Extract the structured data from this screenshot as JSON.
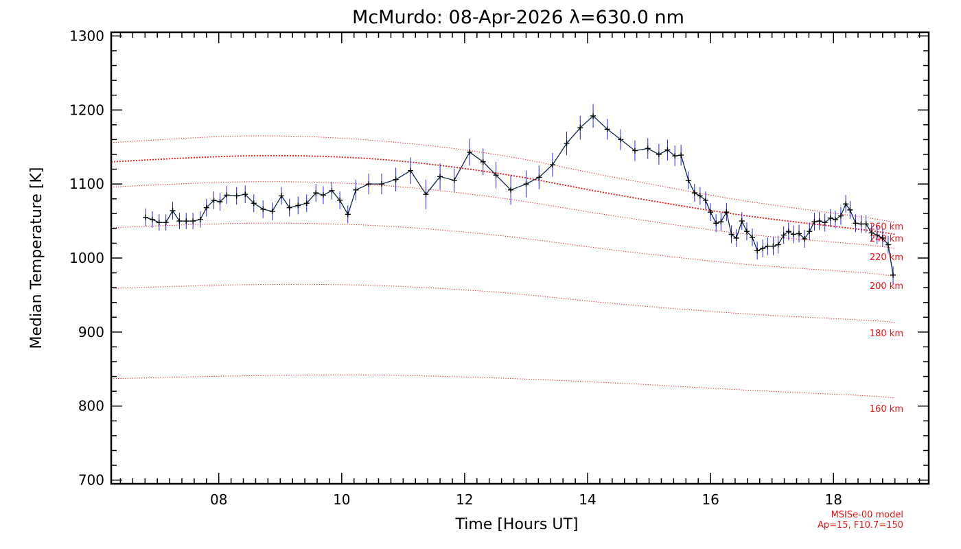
{
  "chart_data": {
    "type": "line",
    "title": "McMurdo: 08-Apr-2026 λ=630.0 nm",
    "xlabel": "Time [Hours UT]",
    "ylabel": "Median Temperature [K]",
    "xlim": [
      6.25,
      19.55
    ],
    "ylim": [
      695,
      1305
    ],
    "xticks": [
      8,
      10,
      12,
      14,
      16,
      18
    ],
    "xtick_labels": [
      "08",
      "10",
      "12",
      "14",
      "16",
      "18"
    ],
    "yticks": [
      700,
      800,
      900,
      1000,
      1100,
      1200,
      1300
    ],
    "ytick_labels": [
      "700",
      "800",
      "900",
      "1000",
      "1100",
      "1200",
      "1300"
    ],
    "colors": {
      "measured": "#000000",
      "error_bars": "#1f1fff",
      "model": "#ee1111",
      "note": "#ee1111"
    },
    "series": [
      {
        "name": "Measured median temperature",
        "x": [
          6.81,
          6.92,
          7.03,
          7.14,
          7.25,
          7.36,
          7.47,
          7.58,
          7.7,
          7.8,
          7.92,
          8.02,
          8.13,
          8.29,
          8.43,
          8.57,
          8.72,
          8.87,
          9.02,
          9.15,
          9.29,
          9.43,
          9.58,
          9.7,
          9.84,
          9.97,
          10.1,
          10.23,
          10.44,
          10.65,
          10.88,
          11.12,
          11.37,
          11.6,
          11.83,
          12.08,
          12.3,
          12.51,
          12.75,
          13.0,
          13.21,
          13.43,
          13.66,
          13.88,
          14.09,
          14.32,
          14.54,
          14.77,
          14.98,
          15.16,
          15.3,
          15.42,
          15.52,
          15.64,
          15.74,
          15.83,
          15.92,
          16.0,
          16.09,
          16.17,
          16.26,
          16.34,
          16.42,
          16.51,
          16.59,
          16.68,
          16.76,
          16.85,
          16.93,
          17.02,
          17.1,
          17.19,
          17.27,
          17.35,
          17.44,
          17.53,
          17.61,
          17.69,
          17.77,
          17.86,
          17.95,
          18.03,
          18.12,
          18.2,
          18.27,
          18.36,
          18.45,
          18.53,
          18.62,
          18.71,
          18.8,
          18.89,
          18.97
        ],
        "y": [
          1055,
          1052,
          1048,
          1048,
          1064,
          1050,
          1050,
          1050,
          1052,
          1068,
          1078,
          1076,
          1085,
          1084,
          1086,
          1074,
          1066,
          1063,
          1084,
          1068,
          1071,
          1074,
          1088,
          1085,
          1091,
          1078,
          1059,
          1092,
          1100,
          1100,
          1106,
          1118,
          1086,
          1110,
          1105,
          1143,
          1130,
          1112,
          1092,
          1100,
          1109,
          1126,
          1155,
          1176,
          1192,
          1174,
          1160,
          1145,
          1148,
          1140,
          1146,
          1138,
          1139,
          1105,
          1088,
          1084,
          1078,
          1062,
          1047,
          1049,
          1062,
          1032,
          1027,
          1050,
          1036,
          1028,
          1010,
          1013,
          1016,
          1016,
          1018,
          1031,
          1036,
          1032,
          1033,
          1026,
          1036,
          1049,
          1050,
          1048,
          1054,
          1052,
          1057,
          1073,
          1065,
          1047,
          1046,
          1046,
          1034,
          1031,
          1027,
          1018,
          977
        ],
        "error": [
          12,
          11,
          11,
          11,
          12,
          11,
          11,
          11,
          11,
          12,
          12,
          12,
          12,
          12,
          12,
          12,
          12,
          12,
          12,
          12,
          12,
          12,
          12,
          12,
          12,
          12,
          12,
          14,
          14,
          14,
          16,
          18,
          20,
          18,
          16,
          18,
          18,
          18,
          20,
          18,
          16,
          16,
          16,
          16,
          16,
          14,
          14,
          14,
          14,
          14,
          14,
          14,
          14,
          12,
          12,
          12,
          12,
          12,
          12,
          12,
          12,
          12,
          12,
          12,
          12,
          12,
          12,
          12,
          12,
          12,
          12,
          12,
          12,
          12,
          12,
          12,
          12,
          12,
          12,
          12,
          12,
          12,
          12,
          12,
          12,
          12,
          12,
          12,
          12,
          12,
          12,
          12,
          12
        ]
      },
      {
        "name": "MSISe-00 model 260 km",
        "x": [
          6.25,
          8.5,
          10.5,
          12.5,
          14.5,
          16.5,
          18.5,
          19.0
        ],
        "y": [
          1156,
          1165,
          1159,
          1140,
          1108,
          1078,
          1055,
          1048
        ]
      },
      {
        "name": "MSISe-00 model 240 km",
        "x": [
          6.25,
          8.5,
          10.5,
          12.5,
          14.5,
          16.5,
          18.5,
          19.0
        ],
        "y": [
          1130,
          1138,
          1134,
          1115,
          1085,
          1058,
          1038,
          1032
        ]
      },
      {
        "name": "MSISe-00 model 220 km",
        "x": [
          6.25,
          8.5,
          10.5,
          12.5,
          14.5,
          16.5,
          18.5,
          19.0
        ],
        "y": [
          1096,
          1103,
          1099,
          1082,
          1056,
          1033,
          1018,
          1013
        ]
      },
      {
        "name": "MSISe-00 model 200 km",
        "x": [
          6.25,
          8.5,
          10.5,
          12.5,
          14.5,
          16.5,
          18.5,
          19.0
        ],
        "y": [
          1041,
          1047,
          1044,
          1031,
          1010,
          992,
          980,
          975
        ]
      },
      {
        "name": "MSISe-00 model 180 km",
        "x": [
          6.25,
          8.5,
          10.5,
          12.5,
          14.5,
          16.5,
          18.5,
          19.0
        ],
        "y": [
          959,
          964,
          963,
          954,
          938,
          925,
          916,
          913
        ]
      },
      {
        "name": "MSISe-00 model 160 km",
        "x": [
          6.25,
          8.5,
          10.5,
          12.5,
          14.5,
          16.5,
          18.5,
          19.0
        ],
        "y": [
          837,
          841,
          842,
          838,
          831,
          822,
          814,
          811
        ]
      }
    ],
    "model_labels": [
      {
        "text": "260 km",
        "y": 1043
      },
      {
        "text": "240 km",
        "y": 1027
      },
      {
        "text": "220 km",
        "y": 1002
      },
      {
        "text": "200 km",
        "y": 963
      },
      {
        "text": "180 km",
        "y": 899
      },
      {
        "text": "160 km",
        "y": 797
      }
    ],
    "model_note": [
      "MSISe-00 model",
      "Ap=15, F10.7=150"
    ]
  }
}
